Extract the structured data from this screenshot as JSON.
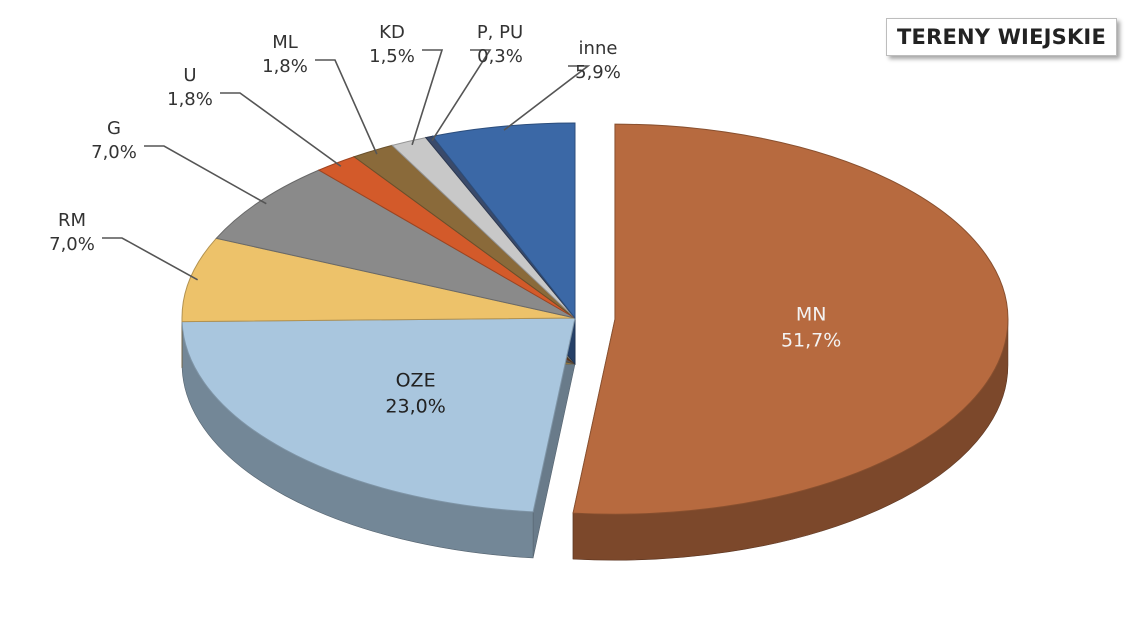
{
  "chart_data": {
    "type": "pie",
    "title": "",
    "legend_box": "TERENY WIEJSKIE",
    "slices": [
      {
        "name": "MN",
        "value": 51.7,
        "label": "51,7%",
        "color": "#b76a3f",
        "exploded": true
      },
      {
        "name": "OZE",
        "value": 23.0,
        "label": "23,0%",
        "color": "#a9c6de"
      },
      {
        "name": "RM",
        "value": 7.0,
        "label": "7,0%",
        "color": "#edc26a"
      },
      {
        "name": "G",
        "value": 7.0,
        "label": "7,0%",
        "color": "#8a8a8a"
      },
      {
        "name": "U",
        "value": 1.8,
        "label": "1,8%",
        "color": "#d35a2a"
      },
      {
        "name": "ML",
        "value": 1.8,
        "label": "1,8%",
        "color": "#8a6a3a"
      },
      {
        "name": "KD",
        "value": 1.5,
        "label": "1,5%",
        "color": "#c8c8c8"
      },
      {
        "name": "P, PU",
        "value": 0.3,
        "label": "0,3%",
        "color": "#3a4a6a"
      },
      {
        "name": "inne",
        "value": 5.9,
        "label": "5,9%",
        "color": "#3b68a6"
      }
    ]
  }
}
